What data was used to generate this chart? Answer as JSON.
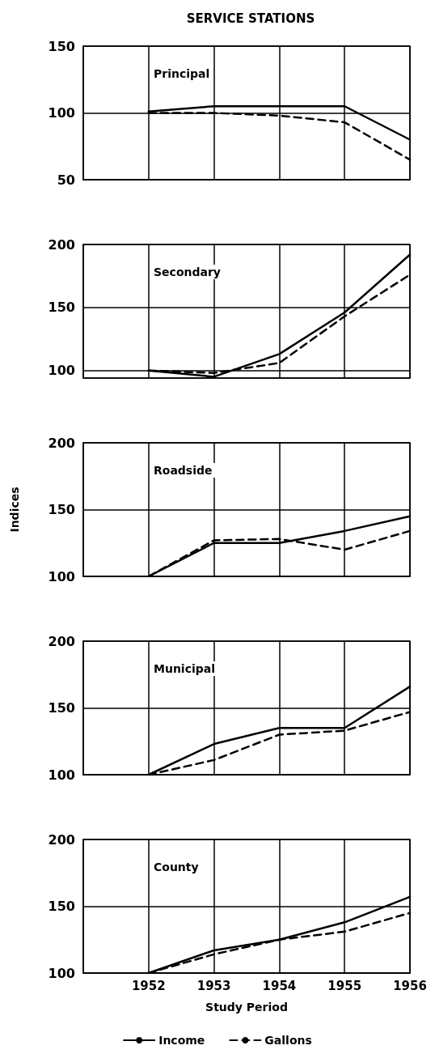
{
  "chart_data": [
    {
      "type": "line",
      "title": "SERVICE STATIONS",
      "subtitle": "Principal",
      "x": [
        1952,
        1953,
        1954,
        1955,
        1956
      ],
      "xlim": [
        1951,
        1956
      ],
      "xticks": [
        1952,
        1953,
        1954,
        1955,
        1956
      ],
      "ylim": [
        50,
        150
      ],
      "yticks": [
        50,
        100,
        150
      ],
      "tick_labels": "y",
      "grid": true,
      "marker": "none",
      "series": [
        {
          "color": "#000000",
          "line_style": "solid",
          "values": [
            101,
            105,
            105,
            105,
            80
          ]
        },
        {
          "color": "#000000",
          "line_style": "dashed",
          "values": [
            100,
            100,
            98,
            93,
            65
          ]
        }
      ]
    },
    {
      "type": "line",
      "subtitle": "Secondary",
      "x": [
        1952,
        1953,
        1954,
        1955,
        1956
      ],
      "xlim": [
        1951,
        1956
      ],
      "xticks": [
        1952,
        1953,
        1954,
        1955,
        1956
      ],
      "ylim": [
        94,
        200
      ],
      "yticks": [
        100,
        150,
        200
      ],
      "tick_labels": "y",
      "grid": true,
      "marker": "none",
      "series": [
        {
          "color": "#000000",
          "line_style": "solid",
          "values": [
            100,
            95,
            113,
            146,
            192
          ]
        },
        {
          "color": "#000000",
          "line_style": "dashed",
          "values": [
            100,
            98,
            106,
            143,
            176
          ]
        }
      ]
    },
    {
      "type": "line",
      "subtitle": "Roadside",
      "ylabel": "Indices",
      "x": [
        1952,
        1953,
        1954,
        1955,
        1956
      ],
      "xlim": [
        1951,
        1956
      ],
      "xticks": [
        1952,
        1953,
        1954,
        1955,
        1956
      ],
      "ylim": [
        100,
        200
      ],
      "yticks": [
        100,
        150,
        200
      ],
      "tick_labels": "y",
      "grid": true,
      "marker": "none",
      "series": [
        {
          "color": "#000000",
          "line_style": "solid",
          "values": [
            100,
            125,
            125,
            134,
            145
          ]
        },
        {
          "color": "#000000",
          "line_style": "dashed",
          "values": [
            100,
            127,
            128,
            120,
            134
          ]
        }
      ]
    },
    {
      "type": "line",
      "subtitle": "Municipal",
      "x": [
        1952,
        1953,
        1954,
        1955,
        1956
      ],
      "xlim": [
        1951,
        1956
      ],
      "xticks": [
        1952,
        1953,
        1954,
        1955,
        1956
      ],
      "ylim": [
        100,
        200
      ],
      "yticks": [
        100,
        150,
        200
      ],
      "tick_labels": "y",
      "grid": true,
      "marker": "none",
      "series": [
        {
          "color": "#000000",
          "line_style": "solid",
          "values": [
            100,
            123,
            135,
            135,
            166
          ]
        },
        {
          "color": "#000000",
          "line_style": "dashed",
          "values": [
            100,
            111,
            130,
            133,
            147
          ]
        }
      ]
    },
    {
      "type": "line",
      "subtitle": "County",
      "xlabel": "Study Period",
      "x": [
        1952,
        1953,
        1954,
        1955,
        1956
      ],
      "xlim": [
        1951,
        1956
      ],
      "xticks": [
        1952,
        1953,
        1954,
        1955,
        1956
      ],
      "ylim": [
        100,
        200
      ],
      "yticks": [
        100,
        150,
        200
      ],
      "grid": true,
      "marker": "none",
      "legend": "bottom",
      "series": [
        {
          "name": "Income",
          "color": "#000000",
          "line_style": "solid",
          "values": [
            100,
            117,
            125,
            138,
            157
          ]
        },
        {
          "name": "Gallons",
          "color": "#000000",
          "line_style": "dashed",
          "values": [
            100,
            114,
            125,
            131,
            145
          ]
        }
      ]
    }
  ]
}
